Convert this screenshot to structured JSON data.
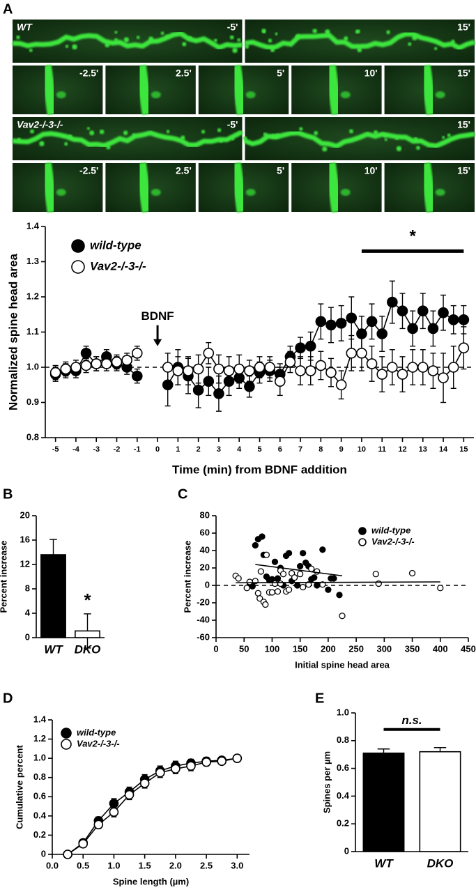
{
  "panel_labels": [
    "A",
    "B",
    "C",
    "D",
    "E"
  ],
  "images": [
    {
      "label": "WT",
      "frames": [
        "-5'",
        "15'"
      ]
    },
    {
      "frames": [
        "-2.5'",
        "2.5'",
        "5'",
        "10'",
        "15'"
      ]
    },
    {
      "label": "Vav2-/-3-/-",
      "frames": [
        "-5'",
        "15'"
      ]
    },
    {
      "frames": [
        "-2.5'",
        "2.5'",
        "5'",
        "10'",
        "15'"
      ]
    }
  ],
  "chart_data": [
    {
      "type": "line",
      "y_label": "Normalized spine head area",
      "x_label": "Time (min) from BDNF addition",
      "x": [
        -5,
        -4.5,
        -4,
        -3.5,
        -3,
        -2.5,
        -2,
        -1.5,
        -1,
        -0.5,
        0.5,
        1,
        1.5,
        2,
        2.5,
        3,
        3.5,
        4,
        4.5,
        5,
        5.5,
        6,
        6.5,
        7,
        7.5,
        8,
        8.5,
        9,
        9.5,
        10,
        10.5,
        11,
        11.5,
        12,
        12.5,
        13,
        13.5,
        14,
        14.5,
        15
      ],
      "series": [
        {
          "name": "wild-type",
          "color": "#000000",
          "marker_face": "#000000",
          "values": [
            0.98,
            0.99,
            0.99,
            1.04,
            1.01,
            1.03,
            1.01,
            1.0,
            0.975,
            null,
            0.95,
            1.0,
            0.975,
            0.935,
            0.96,
            0.925,
            0.96,
            0.97,
            0.945,
            0.985,
            0.99,
            0.98,
            1.03,
            1.055,
            1.06,
            1.13,
            1.12,
            1.125,
            1.14,
            1.095,
            1.13,
            1.095,
            1.185,
            1.16,
            1.11,
            1.16,
            1.11,
            1.155,
            1.135,
            1.135
          ],
          "errors": [
            0.02,
            0.02,
            0.02,
            0.02,
            0.02,
            0.02,
            0.02,
            0.02,
            0.02,
            null,
            0.06,
            0.05,
            0.05,
            0.05,
            0.04,
            0.05,
            0.04,
            0.03,
            0.03,
            0.03,
            0.03,
            0.03,
            0.03,
            0.03,
            0.04,
            0.05,
            0.05,
            0.05,
            0.06,
            0.05,
            0.05,
            0.05,
            0.06,
            0.05,
            0.05,
            0.05,
            0.05,
            0.05,
            0.04,
            0.04
          ]
        },
        {
          "name": "Vav2-/-3-/-",
          "color": "#000000",
          "marker_face": "#ffffff",
          "values": [
            0.985,
            0.995,
            1.0,
            1.005,
            1.01,
            1.01,
            1.015,
            1.02,
            1.04,
            null,
            1.0,
            0.99,
            0.99,
            0.995,
            1.04,
            0.995,
            0.99,
            0.995,
            0.99,
            1.0,
            1.0,
            0.96,
            1.015,
            0.99,
            0.99,
            1.005,
            0.985,
            0.95,
            1.04,
            1.04,
            1.01,
            0.98,
            1.0,
            0.98,
            1.0,
            1.0,
            0.99,
            0.97,
            1.0,
            1.055
          ],
          "errors": [
            0.02,
            0.02,
            0.02,
            0.02,
            0.02,
            0.02,
            0.02,
            0.02,
            0.02,
            null,
            0.04,
            0.04,
            0.04,
            0.04,
            0.03,
            0.04,
            0.04,
            0.04,
            0.03,
            0.03,
            0.03,
            0.04,
            0.03,
            0.04,
            0.04,
            0.04,
            0.04,
            0.04,
            0.05,
            0.05,
            0.05,
            0.05,
            0.05,
            0.05,
            0.05,
            0.05,
            0.05,
            0.07,
            0.06,
            0.06
          ]
        }
      ],
      "xlim": [
        -5.5,
        15.5
      ],
      "xticks": [
        -5,
        -4,
        -3,
        -2,
        -1,
        0,
        1,
        2,
        3,
        4,
        5,
        6,
        7,
        8,
        9,
        10,
        11,
        12,
        13,
        14,
        15
      ],
      "ylim": [
        0.8,
        1.4
      ],
      "yticks": [
        0.8,
        0.9,
        {
          "value": 1,
          "label": "1.0"
        },
        1.1,
        1.2,
        1.3,
        1.4
      ],
      "reference_line": 1,
      "legend": "upper left",
      "event": {
        "label": "BDNF",
        "x": 0
      },
      "significance": {
        "label": "*",
        "x_range": [
          10,
          15
        ]
      }
    },
    {
      "type": "bar",
      "y_label": "Percent increase",
      "categories": [
        "WT",
        "DKO"
      ],
      "values": [
        13.6,
        1.1
      ],
      "errors": [
        2.5,
        2.8
      ],
      "colors": [
        "#000000",
        "#ffffff"
      ],
      "ylim": [
        0,
        20
      ],
      "yticks": [
        0,
        4,
        8,
        12,
        16,
        20
      ],
      "annotation": "*"
    },
    {
      "type": "scatter",
      "y_label": "Percent increase",
      "x_label": "Initial spine head area",
      "series": [
        {
          "name": "wild-type",
          "color": "#000000",
          "marker_face": "#000000",
          "x": [
            60,
            65,
            70,
            75,
            82,
            85,
            90,
            95,
            100,
            105,
            110,
            115,
            120,
            125,
            130,
            135,
            140,
            145,
            150,
            155,
            160,
            165,
            170,
            175,
            180,
            190,
            200,
            205,
            210,
            220
          ],
          "y": [
            0,
            -1,
            46,
            53,
            56,
            35,
            10,
            6,
            7,
            27,
            8,
            20,
            0,
            34,
            37,
            5,
            9,
            0,
            22,
            37,
            26,
            22,
            7,
            9,
            0,
            41,
            -5,
            8,
            8,
            -11
          ],
          "fit": {
            "x": [
              70,
              225
            ],
            "y": [
              24,
              11
            ]
          }
        },
        {
          "name": "Vav2-/-3-/-",
          "color": "#000000",
          "marker_face": "#ffffff",
          "x": [
            35,
            40,
            55,
            60,
            70,
            75,
            78,
            80,
            85,
            88,
            90,
            95,
            100,
            105,
            110,
            115,
            115,
            120,
            125,
            130,
            135,
            140,
            150,
            155,
            165,
            170,
            180,
            190,
            225,
            285,
            290,
            350,
            400
          ],
          "y": [
            11,
            8,
            -3,
            4,
            5,
            -9,
            -15,
            16,
            -19,
            -22,
            35,
            -8,
            -8,
            2,
            -7,
            17,
            2,
            13,
            -7,
            -5,
            14,
            9,
            13,
            -2,
            1,
            19,
            16,
            1,
            -35,
            13,
            2,
            14,
            -3
          ],
          "fit": {
            "x": [
              35,
              400
            ],
            "y": [
              3,
              4
            ]
          }
        }
      ],
      "xlim": [
        0,
        450
      ],
      "xticks": [
        0,
        50,
        100,
        150,
        200,
        250,
        300,
        350,
        400,
        450
      ],
      "ylim": [
        -60,
        80
      ],
      "yticks": [
        -60,
        -40,
        -20,
        0,
        20,
        40,
        60,
        80
      ],
      "reference_line": 0,
      "legend": "upper right"
    },
    {
      "type": "line",
      "y_label": "Cumulative percent",
      "x_label": "Spine length (µm)",
      "x": [
        0.25,
        0.5,
        0.75,
        1,
        1.25,
        1.5,
        1.75,
        2,
        2.25,
        2.5,
        2.75,
        3
      ],
      "series": [
        {
          "name": "wild-type",
          "color": "#000000",
          "marker_face": "#000000",
          "values": [
            0,
            0.12,
            0.35,
            0.53,
            0.65,
            0.78,
            0.87,
            0.92,
            0.95,
            0.97,
            0.98,
            1.0
          ],
          "errors": [
            0,
            0.02,
            0.04,
            0.05,
            0.05,
            0.05,
            0.05,
            0.05,
            0.04,
            0.04,
            0.03,
            0
          ]
        },
        {
          "name": "Vav2-/-3-/-",
          "color": "#000000",
          "marker_face": "#ffffff",
          "values": [
            0,
            0.11,
            0.31,
            0.44,
            0.62,
            0.74,
            0.85,
            0.89,
            0.92,
            0.96,
            0.97,
            1.0
          ],
          "errors": [
            0,
            0.02,
            0.04,
            0.05,
            0.05,
            0.05,
            0.05,
            0.05,
            0.05,
            0.04,
            0.03,
            0
          ]
        }
      ],
      "xlim": [
        0,
        3.2
      ],
      "xticks": [
        {
          "value": 0,
          "label": "0.0"
        },
        0.5,
        {
          "value": 1,
          "label": "1.0"
        },
        1.5,
        {
          "value": 2,
          "label": "2.0"
        },
        2.5,
        {
          "value": 3,
          "label": "3.0"
        }
      ],
      "ylim": [
        0,
        1.4
      ],
      "yticks": [
        0,
        0.2,
        0.4,
        0.6,
        0.8,
        {
          "value": 1,
          "label": "1.0"
        },
        1.2,
        1.4
      ],
      "legend": "upper left"
    },
    {
      "type": "bar",
      "y_label": "Spines per µm",
      "categories": [
        "WT",
        "DKO"
      ],
      "values": [
        0.71,
        0.72
      ],
      "errors": [
        0.03,
        0.03
      ],
      "colors": [
        "#000000",
        "#ffffff"
      ],
      "ylim": [
        0,
        1
      ],
      "yticks": [
        0,
        0.2,
        0.4,
        0.6,
        0.8,
        {
          "value": 1,
          "label": "1.0"
        }
      ],
      "annotation": "n.s."
    }
  ]
}
